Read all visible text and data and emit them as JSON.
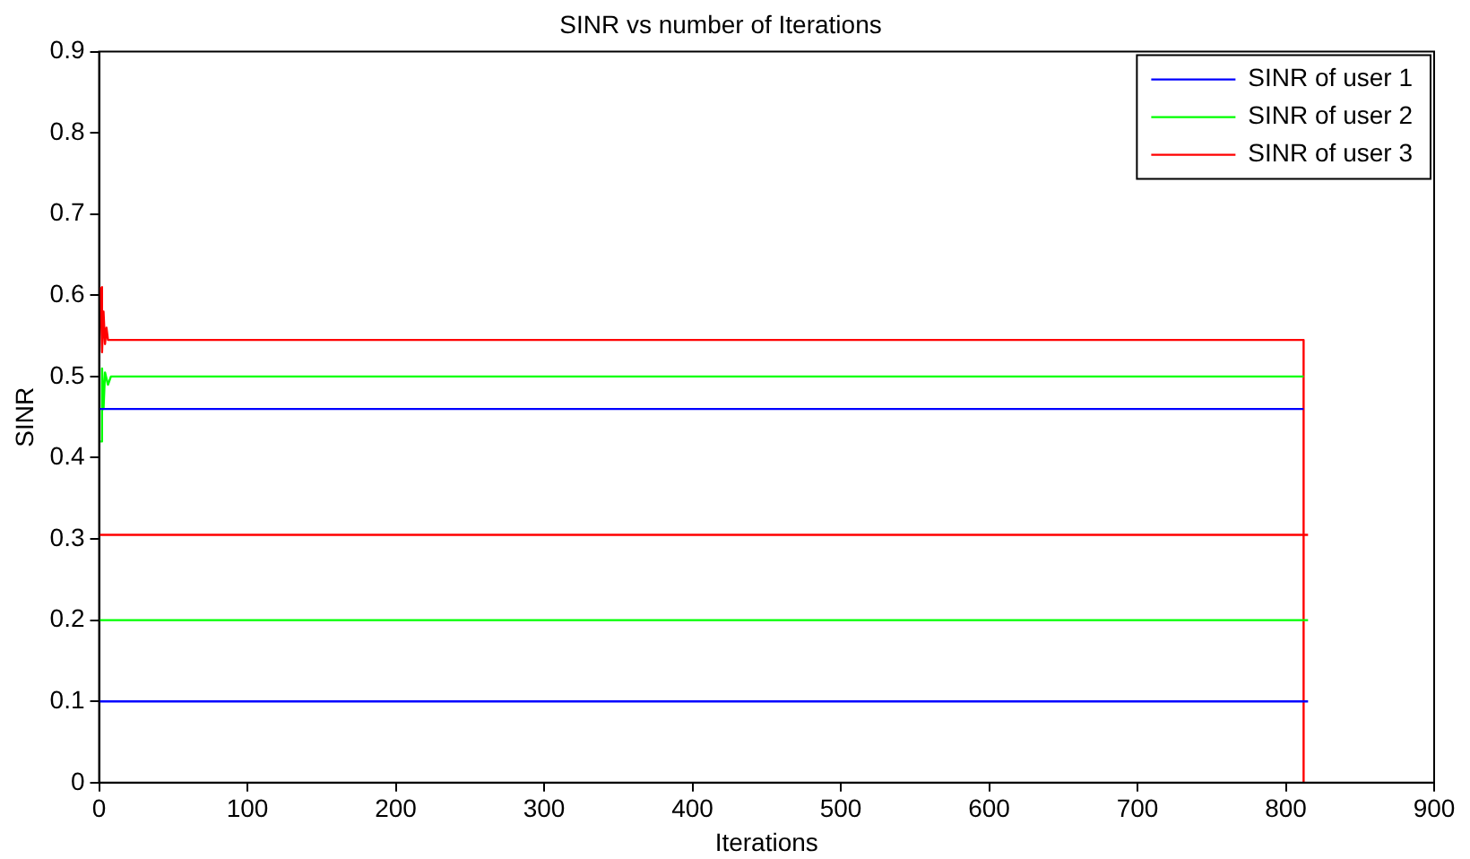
{
  "chart_data": {
    "type": "line",
    "title": "SINR vs number of Iterations",
    "xlabel": "Iterations",
    "ylabel": "SINR",
    "xlim": [
      0,
      900
    ],
    "xticks": [
      0,
      100,
      200,
      300,
      400,
      500,
      600,
      700,
      800,
      900
    ],
    "ylim": [
      0,
      0.9
    ],
    "yticks": [
      0,
      0.1,
      0.2,
      0.3,
      0.4,
      0.5,
      0.6,
      0.7,
      0.8,
      0.9
    ],
    "grid": false,
    "legend": "top right",
    "marker": "none",
    "line_style": "solid",
    "series": [
      {
        "name": "SINR of user 1",
        "color": "#0000ff",
        "x": [
          0,
          812,
          null,
          0,
          815
        ],
        "values": [
          0.46,
          0.46,
          null,
          0.1,
          0.1
        ]
      },
      {
        "name": "SINR of user 2",
        "color": "#00ff00",
        "x": [
          1,
          2,
          3,
          4,
          6,
          8,
          812,
          null,
          0,
          815
        ],
        "values": [
          0.42,
          0.51,
          0.46,
          0.505,
          0.49,
          0.5,
          0.5,
          null,
          0.2,
          0.2
        ]
      },
      {
        "name": "SINR of user 3",
        "color": "#ff0000",
        "x": [
          1,
          2,
          3,
          4,
          5,
          6,
          9,
          812,
          812,
          null,
          0,
          815
        ],
        "values": [
          0.61,
          0.53,
          0.58,
          0.54,
          0.56,
          0.545,
          0.545,
          0.545,
          0,
          null,
          0.305,
          0.305
        ]
      }
    ]
  }
}
